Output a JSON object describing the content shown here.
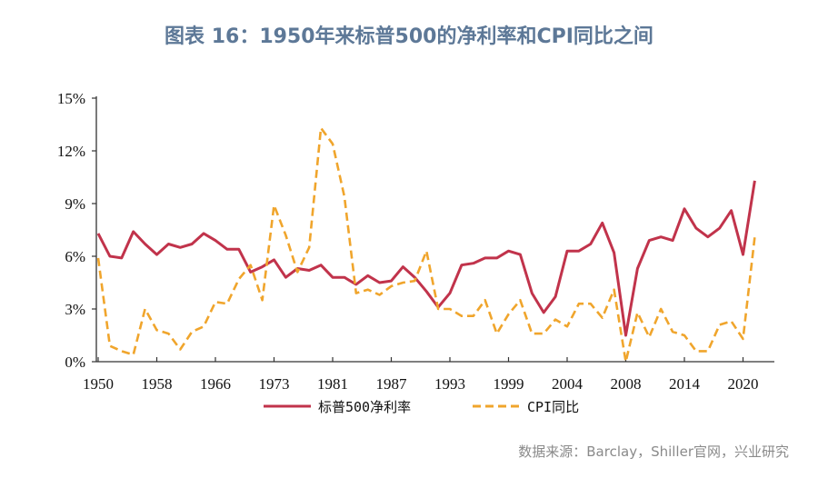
{
  "title": "图表 16：1950年来标普500的净利率和CPI同比之间",
  "source": "数据来源：Barclay，Shiller官网，兴业研究",
  "chart_data": {
    "type": "line",
    "title": "图表 16：1950年来标普500的净利率和CPI同比之间",
    "xlabel": "",
    "ylabel": "",
    "ylim": [
      0,
      15
    ],
    "yticks": [
      "0%",
      "3%",
      "6%",
      "9%",
      "12%",
      "15%"
    ],
    "ytick_values": [
      0,
      3,
      6,
      9,
      12,
      15
    ],
    "point_count": 57,
    "xtick_labels": [
      "1950",
      "1958",
      "1966",
      "1973",
      "1981",
      "1987",
      "1993",
      "1999",
      "2004",
      "2008",
      "2014",
      "2020"
    ],
    "xtick_every": 5,
    "grid": false,
    "legend": "bottom",
    "series": [
      {
        "name": "标普500净利率",
        "color": "#c1334b",
        "style": "solid",
        "values": [
          7.3,
          6.0,
          5.9,
          7.4,
          6.7,
          6.1,
          6.7,
          6.5,
          6.7,
          7.3,
          6.9,
          6.4,
          6.4,
          5.1,
          5.4,
          5.8,
          4.8,
          5.3,
          5.2,
          5.5,
          4.8,
          4.8,
          4.4,
          4.9,
          4.5,
          4.6,
          5.4,
          4.8,
          4.0,
          3.1,
          3.9,
          5.5,
          5.6,
          5.9,
          5.9,
          6.3,
          6.1,
          3.9,
          2.8,
          3.7,
          6.3,
          6.3,
          6.7,
          7.9,
          6.2,
          1.5,
          5.3,
          6.9,
          7.1,
          6.9,
          8.7,
          7.6,
          7.1,
          7.6,
          8.6,
          6.1,
          10.3
        ]
      },
      {
        "name": "CPI同比",
        "color": "#f0a52c",
        "style": "dashed",
        "values": [
          5.9,
          0.9,
          0.6,
          0.4,
          3.0,
          1.8,
          1.6,
          0.7,
          1.7,
          2.0,
          3.4,
          3.3,
          4.7,
          5.5,
          3.5,
          8.9,
          7.2,
          5.1,
          6.5,
          13.3,
          12.4,
          9.4,
          3.9,
          4.1,
          3.8,
          4.3,
          4.5,
          4.6,
          6.3,
          3.0,
          3.0,
          2.6,
          2.6,
          3.5,
          1.6,
          2.7,
          3.5,
          1.6,
          1.6,
          2.4,
          2.0,
          3.3,
          3.3,
          2.5,
          4.1,
          0.0,
          2.8,
          1.4,
          3.0,
          1.7,
          1.5,
          0.6,
          0.6,
          2.1,
          2.3,
          1.3,
          7.1
        ]
      }
    ]
  }
}
